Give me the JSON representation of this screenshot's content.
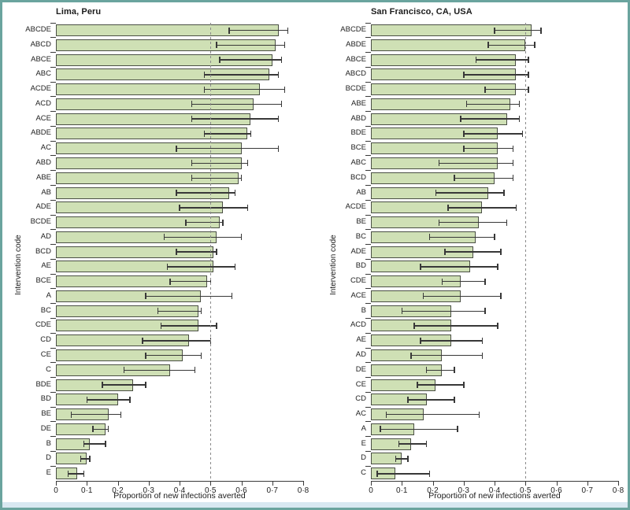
{
  "figure": {
    "colors": {
      "frame": "#6aa49e",
      "bottom_strip": "#d8e8f1",
      "bar_fill": "#cfe0b5",
      "bar_border": "#4a4f44",
      "error_bar": "#383838",
      "reference_line": "#8b8b8b",
      "text": "#1c1c1c"
    }
  },
  "chart_data": [
    {
      "type": "bar",
      "orientation": "horizontal",
      "title": "Lima, Peru",
      "xlabel": "Proportion of new infections averted",
      "ylabel": "Intervention code",
      "xlim": [
        0,
        0.8
      ],
      "x_tick_labels": [
        "0",
        "0·1",
        "0·2",
        "0·3",
        "0·4",
        "0·5",
        "0·6",
        "0·7",
        "0·8"
      ],
      "reference_line_x": 0.5,
      "grid": false,
      "error_bars": true,
      "categories": [
        "ABCDE",
        "ABCD",
        "ABCE",
        "ABC",
        "ACDE",
        "ACD",
        "ACE",
        "ABDE",
        "AC",
        "ABD",
        "ABE",
        "AB",
        "ADE",
        "BCDE",
        "AD",
        "BCD",
        "AE",
        "BCE",
        "A",
        "BC",
        "CDE",
        "CD",
        "CE",
        "C",
        "BDE",
        "BD",
        "BE",
        "DE",
        "B",
        "D",
        "E"
      ],
      "values": [
        0.72,
        0.71,
        0.7,
        0.69,
        0.66,
        0.64,
        0.63,
        0.62,
        0.6,
        0.6,
        0.59,
        0.56,
        0.54,
        0.53,
        0.52,
        0.51,
        0.51,
        0.49,
        0.47,
        0.46,
        0.46,
        0.43,
        0.41,
        0.37,
        0.25,
        0.2,
        0.17,
        0.16,
        0.11,
        0.1,
        0.07
      ],
      "ci_low": [
        0.56,
        0.52,
        0.53,
        0.48,
        0.48,
        0.44,
        0.44,
        0.48,
        0.39,
        0.44,
        0.44,
        0.39,
        0.4,
        0.42,
        0.35,
        0.39,
        0.36,
        0.37,
        0.29,
        0.33,
        0.34,
        0.28,
        0.29,
        0.22,
        0.15,
        0.1,
        0.05,
        0.12,
        0.09,
        0.08,
        0.04
      ],
      "ci_high": [
        0.75,
        0.74,
        0.73,
        0.72,
        0.74,
        0.73,
        0.72,
        0.63,
        0.72,
        0.62,
        0.6,
        0.58,
        0.62,
        0.54,
        0.6,
        0.52,
        0.58,
        0.5,
        0.57,
        0.47,
        0.52,
        0.5,
        0.47,
        0.45,
        0.29,
        0.24,
        0.21,
        0.17,
        0.16,
        0.11,
        0.09
      ]
    },
    {
      "type": "bar",
      "orientation": "horizontal",
      "title": "San Francisco, CA, USA",
      "xlabel": "Proportion of new infections averted",
      "ylabel": "Intervention code",
      "xlim": [
        0,
        0.8
      ],
      "x_tick_labels": [
        "0",
        "0·1",
        "0·2",
        "0·3",
        "0·4",
        "0·5",
        "0·6",
        "0·7",
        "0·8"
      ],
      "reference_line_x": 0.5,
      "grid": false,
      "error_bars": true,
      "categories": [
        "ABCDE",
        "ABDE",
        "ABCE",
        "ABCD",
        "BCDE",
        "ABE",
        "ABD",
        "BDE",
        "BCE",
        "ABC",
        "BCD",
        "AB",
        "ACDE",
        "BE",
        "BC",
        "ADE",
        "BD",
        "CDE",
        "ACE",
        "B",
        "ACD",
        "AE",
        "AD",
        "DE",
        "CE",
        "CD",
        "AC",
        "A",
        "E",
        "D",
        "C"
      ],
      "values": [
        0.52,
        0.5,
        0.47,
        0.47,
        0.47,
        0.45,
        0.44,
        0.41,
        0.41,
        0.41,
        0.4,
        0.38,
        0.36,
        0.35,
        0.34,
        0.33,
        0.32,
        0.29,
        0.29,
        0.26,
        0.26,
        0.26,
        0.23,
        0.23,
        0.21,
        0.18,
        0.17,
        0.14,
        0.13,
        0.1,
        0.08
      ],
      "ci_low": [
        0.4,
        0.38,
        0.34,
        0.3,
        0.37,
        0.31,
        0.29,
        0.3,
        0.3,
        0.22,
        0.27,
        0.21,
        0.25,
        0.22,
        0.19,
        0.24,
        0.16,
        0.23,
        0.17,
        0.1,
        0.14,
        0.16,
        0.13,
        0.18,
        0.15,
        0.12,
        0.05,
        0.03,
        0.09,
        0.08,
        0.02
      ],
      "ci_high": [
        0.55,
        0.53,
        0.51,
        0.51,
        0.51,
        0.48,
        0.48,
        0.49,
        0.46,
        0.46,
        0.46,
        0.43,
        0.47,
        0.44,
        0.4,
        0.42,
        0.41,
        0.37,
        0.42,
        0.37,
        0.41,
        0.36,
        0.36,
        0.27,
        0.3,
        0.27,
        0.35,
        0.28,
        0.18,
        0.12,
        0.19
      ]
    }
  ]
}
